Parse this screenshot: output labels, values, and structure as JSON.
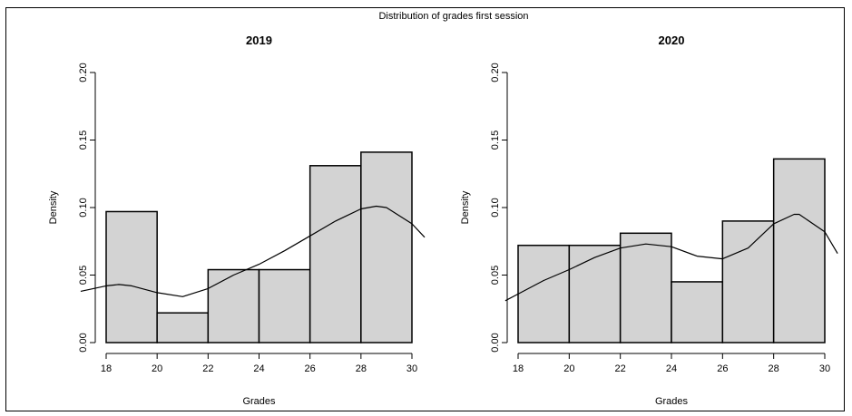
{
  "figure": {
    "title": "Distribution of grades first session"
  },
  "chart_data": [
    {
      "type": "bar",
      "title": "2019",
      "xlabel": "Grades",
      "ylabel": "Density",
      "xlim": [
        18,
        30
      ],
      "ylim": [
        0,
        0.2
      ],
      "x_ticks": [
        18,
        20,
        22,
        24,
        26,
        28,
        30
      ],
      "y_ticks": [
        "0.00",
        "0.05",
        "0.10",
        "0.15",
        "0.20"
      ],
      "bins": [
        {
          "from": 18,
          "to": 20,
          "density": 0.097
        },
        {
          "from": 20,
          "to": 22,
          "density": 0.022
        },
        {
          "from": 22,
          "to": 24,
          "density": 0.054
        },
        {
          "from": 24,
          "to": 26,
          "density": 0.054
        },
        {
          "from": 26,
          "to": 28,
          "density": 0.131
        },
        {
          "from": 28,
          "to": 30,
          "density": 0.141
        }
      ],
      "density_curve": {
        "x": [
          17,
          18,
          18.5,
          19,
          20,
          21,
          22,
          23,
          24,
          25,
          26,
          27,
          28,
          28.6,
          29,
          30,
          30.5
        ],
        "y": [
          0.038,
          0.042,
          0.043,
          0.042,
          0.037,
          0.034,
          0.04,
          0.05,
          0.058,
          0.068,
          0.079,
          0.09,
          0.099,
          0.101,
          0.1,
          0.088,
          0.078
        ]
      },
      "grid": false,
      "colors": {
        "bar_fill": "#d3d3d3",
        "bar_edge": "#000000",
        "curve": "#000000"
      }
    },
    {
      "type": "bar",
      "title": "2020",
      "xlabel": "Grades",
      "ylabel": "Density",
      "xlim": [
        18,
        30
      ],
      "ylim": [
        0,
        0.2
      ],
      "x_ticks": [
        18,
        20,
        22,
        24,
        26,
        28,
        30
      ],
      "y_ticks": [
        "0.00",
        "0.05",
        "0.10",
        "0.15",
        "0.20"
      ],
      "bins": [
        {
          "from": 18,
          "to": 20,
          "density": 0.072
        },
        {
          "from": 20,
          "to": 22,
          "density": 0.072
        },
        {
          "from": 22,
          "to": 24,
          "density": 0.081
        },
        {
          "from": 24,
          "to": 26,
          "density": 0.045
        },
        {
          "from": 26,
          "to": 28,
          "density": 0.09
        },
        {
          "from": 28,
          "to": 30,
          "density": 0.136
        }
      ],
      "density_curve": {
        "x": [
          17.5,
          18,
          19,
          20,
          21,
          22,
          23,
          24,
          25,
          26,
          27,
          28,
          28.8,
          29,
          30,
          30.5
        ],
        "y": [
          0.031,
          0.036,
          0.046,
          0.054,
          0.063,
          0.07,
          0.073,
          0.071,
          0.064,
          0.062,
          0.07,
          0.088,
          0.095,
          0.095,
          0.082,
          0.066
        ]
      },
      "grid": false,
      "colors": {
        "bar_fill": "#d3d3d3",
        "bar_edge": "#000000",
        "curve": "#000000"
      }
    }
  ]
}
